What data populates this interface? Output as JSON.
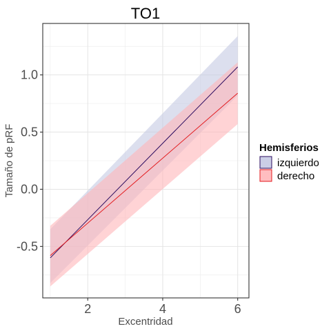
{
  "chart_data": {
    "type": "line",
    "title": "TO1",
    "xlabel": "Excentridad",
    "ylabel": "Tamaño de pRF",
    "xlim": [
      0.8,
      6.3
    ],
    "ylim": [
      -0.95,
      1.45
    ],
    "x_ticks": [
      2,
      4,
      6
    ],
    "x_tick_labels": [
      "2",
      "4",
      "6"
    ],
    "y_ticks": [
      -0.5,
      0.0,
      0.5,
      1.0
    ],
    "y_tick_labels": [
      "-0.5",
      "0.0",
      "0.5",
      "1.0"
    ],
    "grid": true,
    "legend": {
      "title": "Hemisferios",
      "position": "right"
    },
    "series": [
      {
        "name": "izquierdo",
        "line_color": "#2a0a5e",
        "band_color": "#c5c9e3",
        "x": [
          1,
          6
        ],
        "y": [
          -0.6,
          1.07
        ],
        "lower": [
          -0.82,
          0.82
        ],
        "upper": [
          -0.35,
          1.34
        ]
      },
      {
        "name": "derecho",
        "line_color": "#e3191c",
        "band_color": "#ffb6b9",
        "x": [
          1,
          6
        ],
        "y": [
          -0.58,
          0.84
        ],
        "lower": [
          -0.85,
          0.57
        ],
        "upper": [
          -0.32,
          1.11
        ]
      }
    ]
  }
}
